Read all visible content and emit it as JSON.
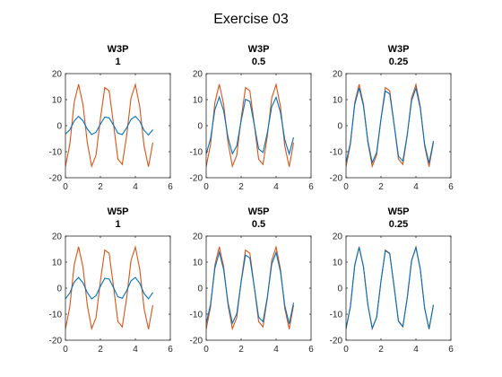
{
  "figure": {
    "title": "Exercise 03"
  },
  "colors": {
    "reference": "#d95319",
    "approx": "#0072bd",
    "axis": "#262626",
    "background": "#ffffff"
  },
  "chart_data": [
    {
      "type": "line",
      "title": [
        "W3P",
        "1"
      ],
      "xlim": [
        0,
        6
      ],
      "ylim": [
        -20,
        20
      ],
      "xticks": [
        0,
        2,
        4,
        6
      ],
      "yticks": [
        -20,
        -10,
        0,
        10,
        20
      ],
      "grid": false,
      "series": [
        {
          "role": "reference",
          "x": [
            0,
            0.25,
            0.5,
            0.75,
            1.0,
            1.25,
            1.5,
            1.75,
            2.0,
            2.25,
            2.5,
            2.75,
            3.0,
            3.25,
            3.5,
            3.75,
            4.0,
            4.25,
            4.5,
            4.75,
            5.0
          ],
          "y": [
            -15.7,
            -7.2,
            8.9,
            15.9,
            8.2,
            -6.5,
            -15.6,
            -11.3,
            2.7,
            14.6,
            13.4,
            0.6,
            -12.8,
            -14.9,
            -3.9,
            10.6,
            15.8,
            7.3,
            -7.9,
            -15.8,
            -6.5
          ]
        },
        {
          "role": "approx",
          "x": [
            0,
            0.25,
            0.5,
            0.75,
            1.0,
            1.25,
            1.5,
            1.75,
            2.0,
            2.25,
            2.5,
            2.75,
            3.0,
            3.25,
            3.5,
            3.75,
            4.0,
            4.25,
            4.5,
            4.75,
            5.0
          ],
          "y": [
            -3.2,
            -1.6,
            1.8,
            3.6,
            1.9,
            -1.3,
            -3.4,
            -2.5,
            0.6,
            3.3,
            3.0,
            0.2,
            -2.9,
            -3.4,
            -0.9,
            2.4,
            3.6,
            1.7,
            -1.8,
            -3.6,
            -1.5
          ]
        }
      ]
    },
    {
      "type": "line",
      "title": [
        "W3P",
        "0.5"
      ],
      "xlim": [
        0,
        6
      ],
      "ylim": [
        -20,
        20
      ],
      "xticks": [
        0,
        2,
        4,
        6
      ],
      "yticks": [
        -20,
        -10,
        0,
        10,
        20
      ],
      "grid": false,
      "series": [
        {
          "role": "reference",
          "x": [
            0,
            0.25,
            0.5,
            0.75,
            1.0,
            1.25,
            1.5,
            1.75,
            2.0,
            2.25,
            2.5,
            2.75,
            3.0,
            3.25,
            3.5,
            3.75,
            4.0,
            4.25,
            4.5,
            4.75,
            5.0
          ],
          "y": [
            -15.7,
            -7.2,
            8.9,
            15.9,
            8.2,
            -6.5,
            -15.6,
            -11.3,
            2.7,
            14.6,
            13.4,
            0.6,
            -12.8,
            -14.9,
            -3.9,
            10.6,
            15.8,
            7.3,
            -7.9,
            -15.8,
            -6.5
          ]
        },
        {
          "role": "approx",
          "x": [
            0,
            0.25,
            0.5,
            0.75,
            1.0,
            1.25,
            1.5,
            1.75,
            2.0,
            2.25,
            2.5,
            2.75,
            3.0,
            3.25,
            3.5,
            3.75,
            4.0,
            4.25,
            4.5,
            4.75,
            5.0
          ],
          "y": [
            -10.9,
            -5.0,
            6.2,
            11.0,
            5.7,
            -4.5,
            -10.8,
            -7.8,
            1.9,
            10.1,
            9.3,
            0.4,
            -8.9,
            -10.3,
            -2.7,
            7.3,
            10.9,
            5.1,
            -5.5,
            -10.9,
            -4.5
          ]
        }
      ]
    },
    {
      "type": "line",
      "title": [
        "W3P",
        "0.25"
      ],
      "xlim": [
        0,
        6
      ],
      "ylim": [
        -20,
        20
      ],
      "xticks": [
        0,
        2,
        4,
        6
      ],
      "yticks": [
        -20,
        -10,
        0,
        10,
        20
      ],
      "grid": false,
      "series": [
        {
          "role": "reference",
          "x": [
            0,
            0.25,
            0.5,
            0.75,
            1.0,
            1.25,
            1.5,
            1.75,
            2.0,
            2.25,
            2.5,
            2.75,
            3.0,
            3.25,
            3.5,
            3.75,
            4.0,
            4.25,
            4.5,
            4.75,
            5.0
          ],
          "y": [
            -15.7,
            -7.2,
            8.9,
            15.9,
            8.2,
            -6.5,
            -15.6,
            -11.3,
            2.7,
            14.6,
            13.4,
            0.6,
            -12.8,
            -14.9,
            -3.9,
            10.6,
            15.8,
            7.3,
            -7.9,
            -15.8,
            -6.5
          ]
        },
        {
          "role": "approx",
          "x": [
            0,
            0.25,
            0.5,
            0.75,
            1.0,
            1.25,
            1.5,
            1.75,
            2.0,
            2.25,
            2.5,
            2.75,
            3.0,
            3.25,
            3.5,
            3.75,
            4.0,
            4.25,
            4.5,
            4.75,
            5.0
          ],
          "y": [
            -14.3,
            -6.6,
            8.1,
            14.5,
            7.5,
            -5.9,
            -14.2,
            -10.3,
            2.5,
            13.3,
            12.2,
            0.5,
            -11.7,
            -13.6,
            -3.6,
            9.6,
            14.4,
            6.6,
            -7.2,
            -14.4,
            -5.9
          ]
        }
      ]
    },
    {
      "type": "line",
      "title": [
        "W5P",
        "1"
      ],
      "xlim": [
        0,
        6
      ],
      "ylim": [
        -20,
        20
      ],
      "xticks": [
        0,
        2,
        4,
        6
      ],
      "yticks": [
        -20,
        -10,
        0,
        10,
        20
      ],
      "grid": false,
      "series": [
        {
          "role": "reference",
          "x": [
            0,
            0.25,
            0.5,
            0.75,
            1.0,
            1.25,
            1.5,
            1.75,
            2.0,
            2.25,
            2.5,
            2.75,
            3.0,
            3.25,
            3.5,
            3.75,
            4.0,
            4.25,
            4.5,
            4.75,
            5.0
          ],
          "y": [
            -15.7,
            -7.2,
            8.9,
            15.9,
            8.2,
            -6.5,
            -15.6,
            -11.3,
            2.7,
            14.6,
            13.4,
            0.6,
            -12.8,
            -14.9,
            -3.9,
            10.6,
            15.8,
            7.3,
            -7.9,
            -15.8,
            -6.5
          ]
        },
        {
          "role": "approx",
          "x": [
            0,
            0.25,
            0.5,
            0.75,
            1.0,
            1.25,
            1.5,
            1.75,
            2.0,
            2.25,
            2.5,
            2.75,
            3.0,
            3.25,
            3.5,
            3.75,
            4.0,
            4.25,
            4.5,
            4.75,
            5.0
          ],
          "y": [
            -4.1,
            -1.9,
            2.3,
            4.1,
            2.1,
            -1.7,
            -4.1,
            -2.9,
            0.7,
            3.8,
            3.5,
            0.2,
            -3.3,
            -3.9,
            -1.0,
            2.8,
            4.1,
            1.9,
            -2.1,
            -4.1,
            -1.7
          ]
        }
      ]
    },
    {
      "type": "line",
      "title": [
        "W5P",
        "0.5"
      ],
      "xlim": [
        0,
        6
      ],
      "ylim": [
        -20,
        20
      ],
      "xticks": [
        0,
        2,
        4,
        6
      ],
      "yticks": [
        -20,
        -10,
        0,
        10,
        20
      ],
      "grid": false,
      "series": [
        {
          "role": "reference",
          "x": [
            0,
            0.25,
            0.5,
            0.75,
            1.0,
            1.25,
            1.5,
            1.75,
            2.0,
            2.25,
            2.5,
            2.75,
            3.0,
            3.25,
            3.5,
            3.75,
            4.0,
            4.25,
            4.5,
            4.75,
            5.0
          ],
          "y": [
            -15.7,
            -7.2,
            8.9,
            15.9,
            8.2,
            -6.5,
            -15.6,
            -11.3,
            2.7,
            14.6,
            13.4,
            0.6,
            -12.8,
            -14.9,
            -3.9,
            10.6,
            15.8,
            7.3,
            -7.9,
            -15.8,
            -6.5
          ]
        },
        {
          "role": "approx",
          "x": [
            0,
            0.25,
            0.5,
            0.75,
            1.0,
            1.25,
            1.5,
            1.75,
            2.0,
            2.25,
            2.5,
            2.75,
            3.0,
            3.25,
            3.5,
            3.75,
            4.0,
            4.25,
            4.5,
            4.75,
            5.0
          ],
          "y": [
            -13.6,
            -6.2,
            7.7,
            13.8,
            7.1,
            -5.6,
            -13.5,
            -9.8,
            2.3,
            12.7,
            11.6,
            0.5,
            -11.1,
            -12.9,
            -3.4,
            9.2,
            13.7,
            6.3,
            -6.8,
            -13.7,
            -5.6
          ]
        }
      ]
    },
    {
      "type": "line",
      "title": [
        "W5P",
        "0.25"
      ],
      "xlim": [
        0,
        6
      ],
      "ylim": [
        -20,
        20
      ],
      "xticks": [
        0,
        2,
        4,
        6
      ],
      "yticks": [
        -20,
        -10,
        0,
        10,
        20
      ],
      "grid": false,
      "series": [
        {
          "role": "reference",
          "x": [
            0,
            0.25,
            0.5,
            0.75,
            1.0,
            1.25,
            1.5,
            1.75,
            2.0,
            2.25,
            2.5,
            2.75,
            3.0,
            3.25,
            3.5,
            3.75,
            4.0,
            4.25,
            4.5,
            4.75,
            5.0
          ],
          "y": [
            -15.7,
            -7.2,
            8.9,
            15.9,
            8.2,
            -6.5,
            -15.6,
            -11.3,
            2.7,
            14.6,
            13.4,
            0.6,
            -12.8,
            -14.9,
            -3.9,
            10.6,
            15.8,
            7.3,
            -7.9,
            -15.8,
            -6.5
          ]
        },
        {
          "role": "approx",
          "x": [
            0,
            0.25,
            0.5,
            0.75,
            1.0,
            1.25,
            1.5,
            1.75,
            2.0,
            2.25,
            2.5,
            2.75,
            3.0,
            3.25,
            3.5,
            3.75,
            4.0,
            4.25,
            4.5,
            4.75,
            5.0
          ],
          "y": [
            -15.5,
            -7.1,
            8.8,
            15.7,
            8.1,
            -6.4,
            -15.4,
            -11.2,
            2.7,
            14.4,
            13.2,
            0.6,
            -12.6,
            -14.7,
            -3.9,
            10.5,
            15.6,
            7.2,
            -7.8,
            -15.6,
            -6.4
          ]
        }
      ]
    }
  ]
}
